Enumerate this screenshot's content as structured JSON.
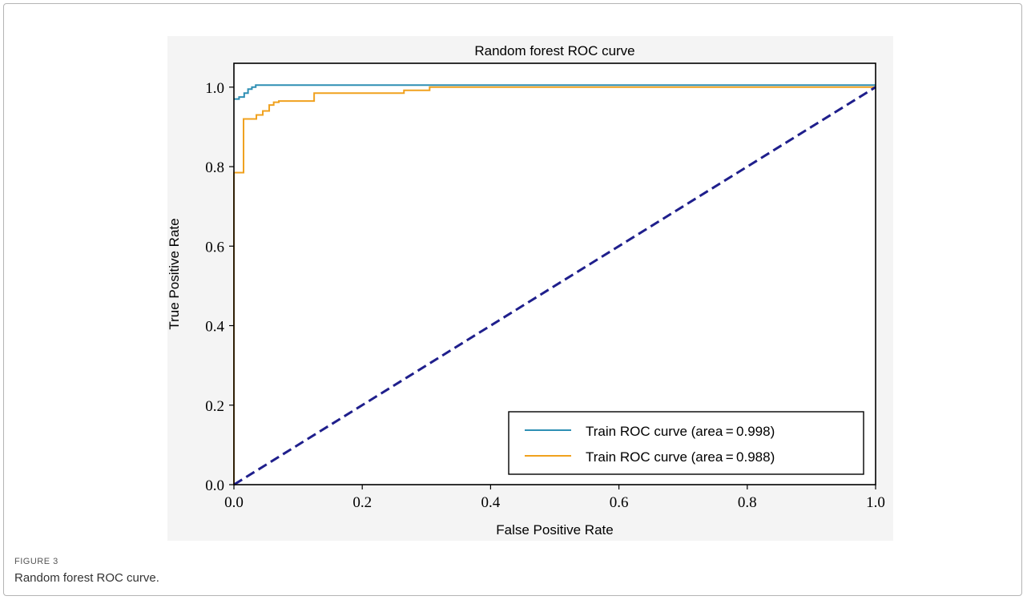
{
  "figure": {
    "label": "FIGURE 3",
    "caption": "Random forest ROC curve."
  },
  "chart_data": {
    "type": "line",
    "title": "Random forest ROC curve",
    "xlabel": "False Positive Rate",
    "ylabel": "True Positive Rate",
    "xlim": [
      0,
      1
    ],
    "ylim": [
      0,
      1.06
    ],
    "xticks": [
      0.0,
      0.2,
      0.4,
      0.6,
      0.8,
      1.0
    ],
    "yticks": [
      0.0,
      0.2,
      0.4,
      0.6,
      0.8,
      1.0
    ],
    "xtick_labels": [
      "0.0",
      "0.2",
      "0.4",
      "0.6",
      "0.8",
      "1.0"
    ],
    "ytick_labels": [
      "0.0",
      "0.2",
      "0.4",
      "0.6",
      "0.8",
      "1.0"
    ],
    "grid": false,
    "legend_position": "lower-right",
    "series": [
      {
        "name": "Train ROC curve  (area = 0.998)",
        "color": "#2e8fb4",
        "style": "solid",
        "x": [
          0,
          0.008,
          0.008,
          0.016,
          0.016,
          0.022,
          0.022,
          0.028,
          0.028,
          0.034,
          0.034,
          1.0
        ],
        "y": [
          0.97,
          0.97,
          0.975,
          0.975,
          0.985,
          0.985,
          0.995,
          0.995,
          1.0,
          1.0,
          1.005,
          1.005
        ]
      },
      {
        "name": "Train ROC curve  (area = 0.988)",
        "color": "#f0a11e",
        "style": "solid",
        "x": [
          0,
          0.0,
          0.015,
          0.015,
          0.035,
          0.035,
          0.045,
          0.045,
          0.055,
          0.055,
          0.062,
          0.062,
          0.07,
          0.07,
          0.125,
          0.125,
          0.265,
          0.265,
          0.305,
          0.305,
          1.0
        ],
        "y": [
          0,
          0.785,
          0.785,
          0.92,
          0.92,
          0.93,
          0.93,
          0.94,
          0.94,
          0.955,
          0.955,
          0.962,
          0.962,
          0.965,
          0.965,
          0.985,
          0.985,
          0.992,
          0.992,
          1.0,
          1.0
        ]
      },
      {
        "name": "",
        "color": "#1f1f8c",
        "style": "dashed",
        "x": [
          0,
          1
        ],
        "y": [
          0,
          1
        ]
      }
    ]
  }
}
